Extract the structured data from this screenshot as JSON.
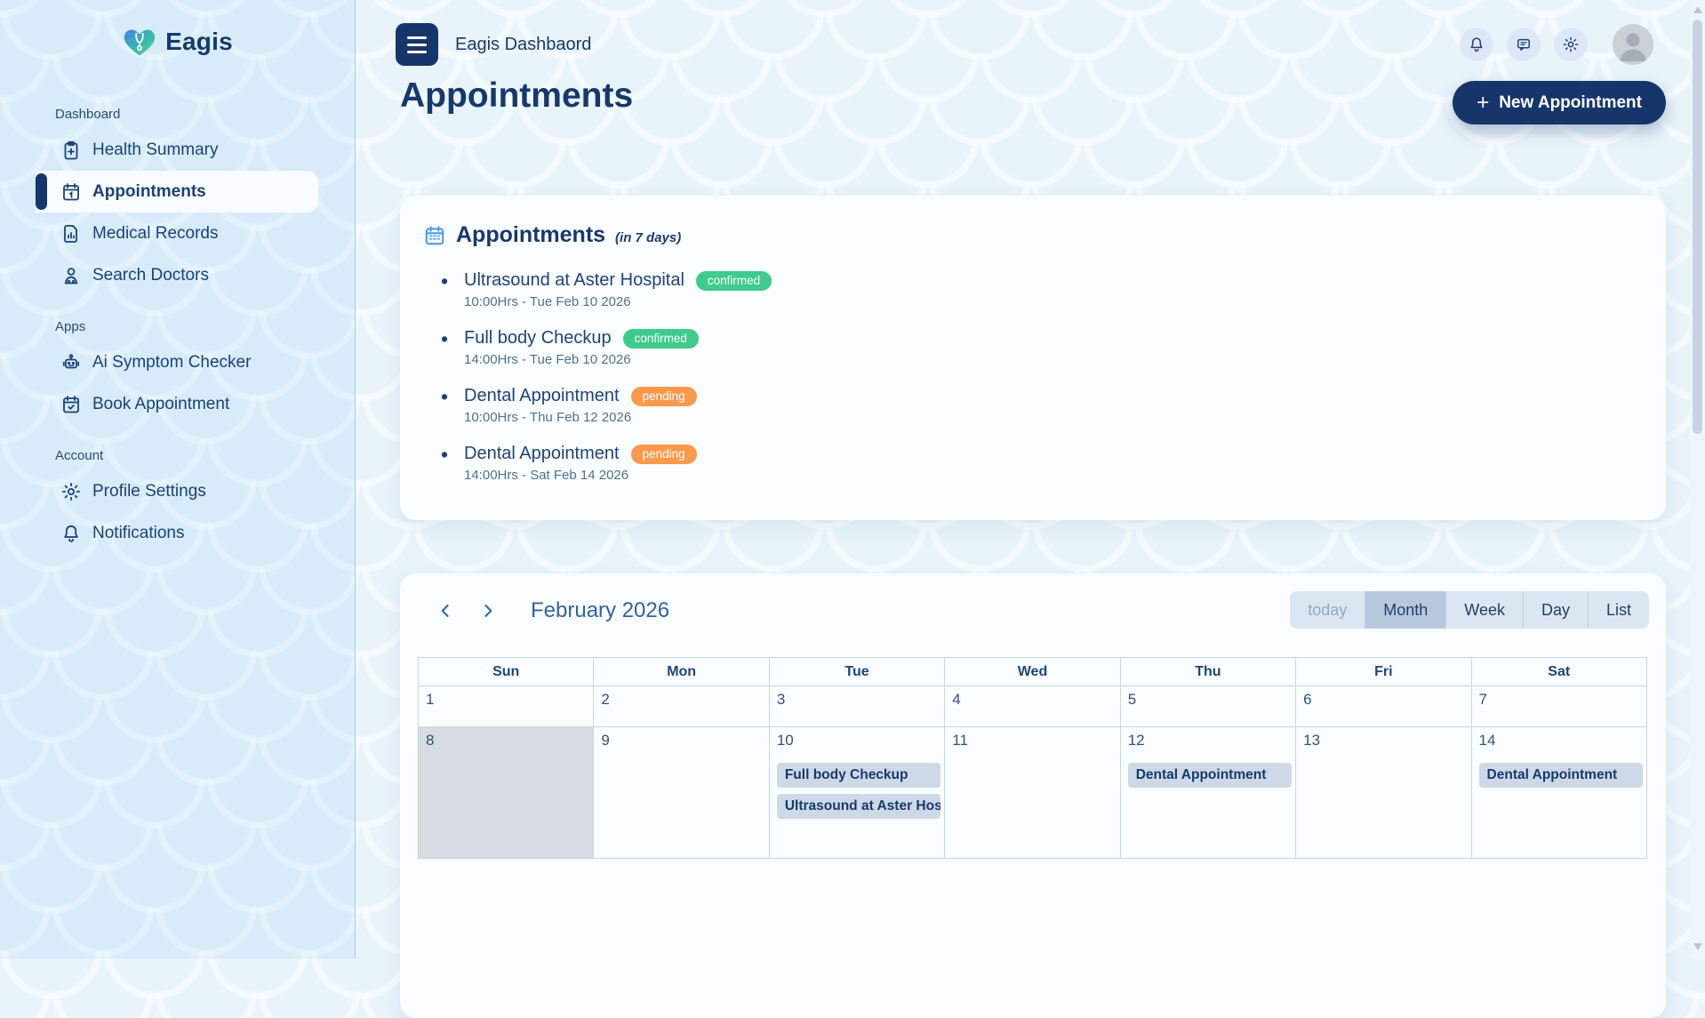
{
  "brand": {
    "name": "Eagis"
  },
  "header": {
    "app_title": "Eagis Dashbaord",
    "actions": [
      {
        "icon": "bell-icon"
      },
      {
        "icon": "chat-icon"
      },
      {
        "icon": "gear-icon"
      }
    ]
  },
  "sidebar": {
    "sections": [
      {
        "label": "Dashboard",
        "items": [
          {
            "label": "Health Summary",
            "icon": "clipboard-plus-icon",
            "active": false
          },
          {
            "label": "Appointments",
            "icon": "calendar-icon",
            "active": true
          },
          {
            "label": "Medical Records",
            "icon": "document-chart-icon",
            "active": false
          },
          {
            "label": "Search Doctors",
            "icon": "doctor-icon",
            "active": false
          }
        ]
      },
      {
        "label": "Apps",
        "items": [
          {
            "label": "Ai Symptom Checker",
            "icon": "robot-icon",
            "active": false
          },
          {
            "label": "Book Appointment",
            "icon": "calendar-check-icon",
            "active": false
          }
        ]
      },
      {
        "label": "Account",
        "items": [
          {
            "label": "Profile Settings",
            "icon": "gear-icon",
            "active": false
          },
          {
            "label": "Notifications",
            "icon": "bell-icon",
            "active": false
          }
        ]
      }
    ]
  },
  "page": {
    "title": "Appointments",
    "new_appointment_plus": "+",
    "new_appointment_label": "New Appointment"
  },
  "summary_card": {
    "title": "Appointments",
    "subtitle": "(in 7 days)",
    "items": [
      {
        "title": "Ultrasound at Aster Hospital",
        "status": "confirmed",
        "time": "10:00Hrs - Tue Feb 10 2026"
      },
      {
        "title": "Full body Checkup",
        "status": "confirmed",
        "time": "14:00Hrs - Tue Feb 10 2026"
      },
      {
        "title": "Dental Appointment",
        "status": "pending",
        "time": "10:00Hrs - Thu Feb 12 2026"
      },
      {
        "title": "Dental Appointment",
        "status": "pending",
        "time": "14:00Hrs - Sat Feb 14 2026"
      }
    ]
  },
  "calendar": {
    "title": "February 2026",
    "views": [
      {
        "label": "today",
        "state": "disabled"
      },
      {
        "label": "Month",
        "state": "active"
      },
      {
        "label": "Week",
        "state": "normal"
      },
      {
        "label": "Day",
        "state": "normal"
      },
      {
        "label": "List",
        "state": "normal"
      }
    ],
    "day_headers": [
      "Sun",
      "Mon",
      "Tue",
      "Wed",
      "Thu",
      "Fri",
      "Sat"
    ],
    "weeks": [
      {
        "days": [
          {
            "num": "1"
          },
          {
            "num": "2"
          },
          {
            "num": "3"
          },
          {
            "num": "4"
          },
          {
            "num": "5"
          },
          {
            "num": "6"
          },
          {
            "num": "7"
          }
        ]
      },
      {
        "days": [
          {
            "num": "8",
            "today": true
          },
          {
            "num": "9"
          },
          {
            "num": "10",
            "events": [
              "Full body Checkup",
              "Ultrasound at Aster Hospital"
            ]
          },
          {
            "num": "11"
          },
          {
            "num": "12",
            "events": [
              "Dental Appointment"
            ]
          },
          {
            "num": "13"
          },
          {
            "num": "14",
            "events": [
              "Dental Appointment"
            ]
          }
        ]
      }
    ]
  },
  "colors": {
    "accent_navy": "#16356b",
    "confirmed_green": "#3ecb8b",
    "pending_orange": "#f8994c",
    "sidebar_blue": "#d7ebf9"
  }
}
